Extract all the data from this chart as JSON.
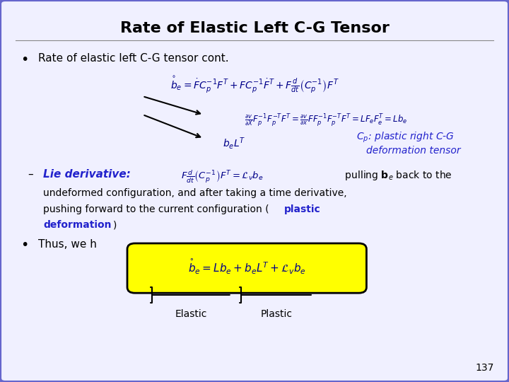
{
  "title": "Rate of Elastic Left C-G Tensor",
  "background_color": "#f0f0ff",
  "border_color": "#6666cc",
  "title_color": "#000000",
  "slide_number": "137",
  "bullet1": "Rate of elastic left C-G tensor cont.",
  "annotation_color": "#2222cc",
  "lie_color": "#2222cc",
  "final_eq_bg": "#ffff00",
  "elastic_label": "Elastic",
  "plastic_label": "Plastic",
  "text_color": "#000000",
  "blue_color": "#2222cc",
  "eq_color": "#000088"
}
